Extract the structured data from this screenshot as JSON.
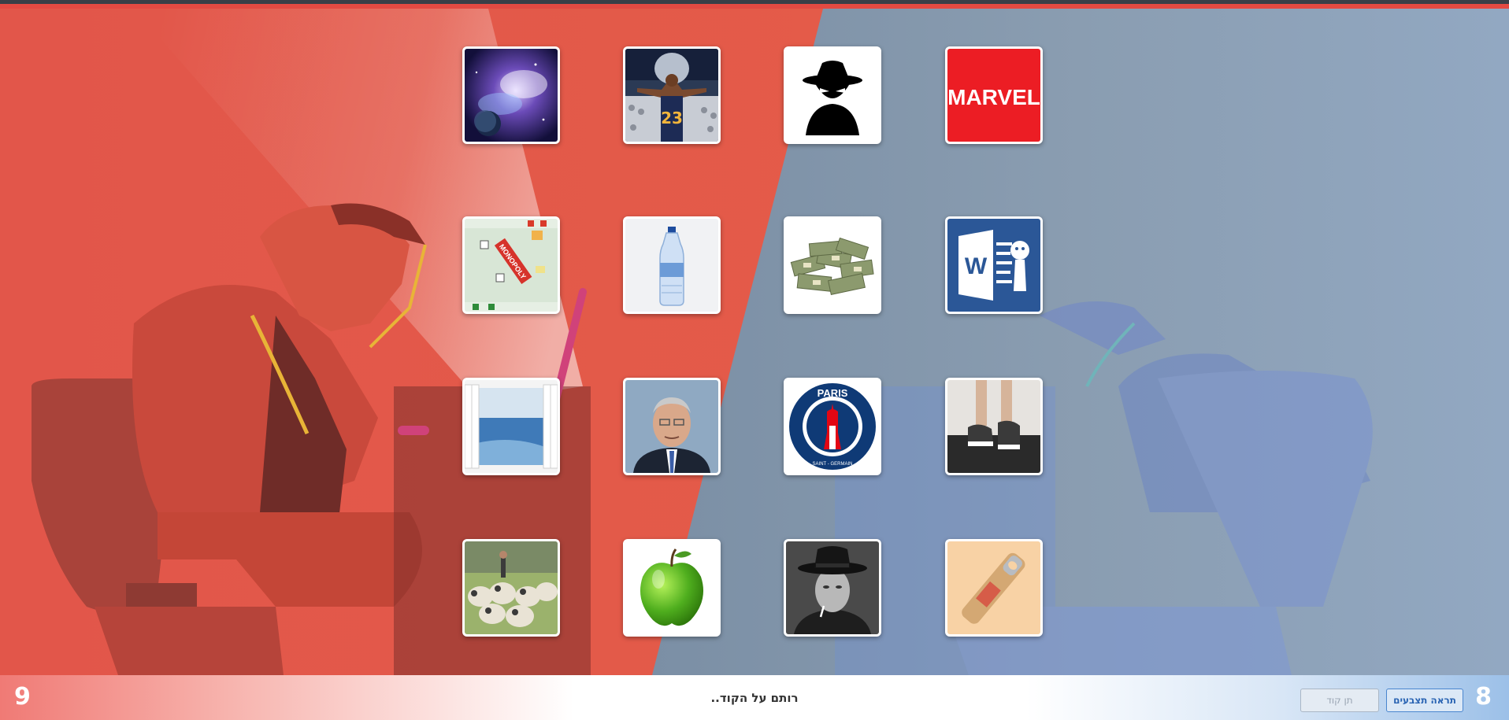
{
  "teams": {
    "red_score": "9",
    "blue_score": "8",
    "red_color": "#e65a45",
    "blue_color": "#8299ad"
  },
  "footer": {
    "status_text": "רותם על הקוד..",
    "show_colors_label": "תראה תצבעים",
    "give_code_label": "תן קוד"
  },
  "cards": [
    {
      "image": "galaxy-nebula"
    },
    {
      "image": "basketball-player-23"
    },
    {
      "image": "spy-silhouette"
    },
    {
      "image": "marvel-logo",
      "text": "MARVEL"
    },
    {
      "image": "monopoly-board",
      "text": "MONOPOLY"
    },
    {
      "image": "water-bottle"
    },
    {
      "image": "money-stacks"
    },
    {
      "image": "word-logo",
      "text": "W"
    },
    {
      "image": "window-sea-view"
    },
    {
      "image": "politician-portrait"
    },
    {
      "image": "psg-logo",
      "text": "PARIS",
      "subtext": "SAINT - GERMAIN"
    },
    {
      "image": "treadmill-sneakers"
    },
    {
      "image": "sheep-flock"
    },
    {
      "image": "green-apple"
    },
    {
      "image": "man-in-hat-bw"
    },
    {
      "image": "bottle-opener"
    }
  ]
}
